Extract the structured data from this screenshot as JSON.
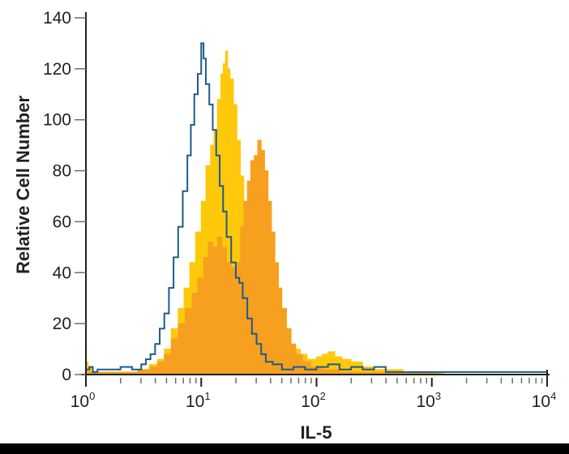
{
  "colors": {
    "isotype_outline": "#1f5a8a",
    "yellow_fill": "#ffc90b",
    "orange_fill": "#f7a01f",
    "axis": "#231f20",
    "tick": "#6d6e71",
    "baseline": "#4a3b2a",
    "background": "#ffffff"
  },
  "chart_data": {
    "type": "area",
    "title": "",
    "xlabel": "IL-5",
    "ylabel": "Relative Cell Number",
    "xscale": "log",
    "xlim_log10": [
      0,
      4
    ],
    "ylim": [
      0,
      140
    ],
    "grid": false,
    "legend": null,
    "x_tick_labels": [
      {
        "base": "10",
        "exp": "0",
        "log10": 0
      },
      {
        "base": "10",
        "exp": "1",
        "log10": 1
      },
      {
        "base": "10",
        "exp": "2",
        "log10": 2
      },
      {
        "base": "10",
        "exp": "3",
        "log10": 3
      },
      {
        "base": "10",
        "exp": "4",
        "log10": 4
      }
    ],
    "y_ticks": [
      0,
      20,
      40,
      60,
      80,
      100,
      120,
      140
    ],
    "series": [
      {
        "name": "Yellow filled histogram",
        "style": "fill",
        "color_key": "yellow_fill",
        "points_log10x_y": [
          [
            0.0,
            5
          ],
          [
            0.02,
            3
          ],
          [
            0.05,
            1
          ],
          [
            0.3,
            1
          ],
          [
            0.45,
            2
          ],
          [
            0.55,
            4
          ],
          [
            0.62,
            6
          ],
          [
            0.68,
            10
          ],
          [
            0.74,
            18
          ],
          [
            0.8,
            26
          ],
          [
            0.85,
            34
          ],
          [
            0.9,
            44
          ],
          [
            0.95,
            56
          ],
          [
            1.0,
            68
          ],
          [
            1.04,
            82
          ],
          [
            1.08,
            90
          ],
          [
            1.11,
            96
          ],
          [
            1.14,
            108
          ],
          [
            1.17,
            118
          ],
          [
            1.19,
            122
          ],
          [
            1.21,
            127
          ],
          [
            1.23,
            120
          ],
          [
            1.25,
            116
          ],
          [
            1.28,
            106
          ],
          [
            1.31,
            92
          ],
          [
            1.34,
            78
          ],
          [
            1.37,
            68
          ],
          [
            1.4,
            62
          ],
          [
            1.44,
            58
          ],
          [
            1.48,
            54
          ],
          [
            1.52,
            48
          ],
          [
            1.56,
            40
          ],
          [
            1.6,
            32
          ],
          [
            1.64,
            24
          ],
          [
            1.68,
            18
          ],
          [
            1.72,
            14
          ],
          [
            1.76,
            12
          ],
          [
            1.8,
            10
          ],
          [
            1.86,
            8
          ],
          [
            1.92,
            6
          ],
          [
            2.0,
            7
          ],
          [
            2.05,
            8
          ],
          [
            2.1,
            9
          ],
          [
            2.16,
            7
          ],
          [
            2.22,
            6
          ],
          [
            2.3,
            5
          ],
          [
            2.4,
            3
          ],
          [
            2.5,
            2
          ],
          [
            2.6,
            2
          ],
          [
            2.75,
            1
          ],
          [
            2.9,
            1
          ],
          [
            3.05,
            1
          ],
          [
            3.1,
            0
          ]
        ]
      },
      {
        "name": "Orange filled histogram",
        "style": "fill",
        "color_key": "orange_fill",
        "points_log10x_y": [
          [
            0.0,
            1
          ],
          [
            0.1,
            1
          ],
          [
            0.3,
            1
          ],
          [
            0.45,
            2
          ],
          [
            0.55,
            3
          ],
          [
            0.62,
            5
          ],
          [
            0.68,
            8
          ],
          [
            0.74,
            14
          ],
          [
            0.8,
            20
          ],
          [
            0.86,
            26
          ],
          [
            0.92,
            32
          ],
          [
            0.97,
            38
          ],
          [
            1.02,
            46
          ],
          [
            1.06,
            52
          ],
          [
            1.1,
            50
          ],
          [
            1.14,
            54
          ],
          [
            1.18,
            50
          ],
          [
            1.22,
            44
          ],
          [
            1.26,
            42
          ],
          [
            1.3,
            44
          ],
          [
            1.34,
            58
          ],
          [
            1.37,
            68
          ],
          [
            1.4,
            76
          ],
          [
            1.43,
            84
          ],
          [
            1.46,
            86
          ],
          [
            1.49,
            92
          ],
          [
            1.52,
            88
          ],
          [
            1.55,
            80
          ],
          [
            1.58,
            68
          ],
          [
            1.61,
            56
          ],
          [
            1.64,
            44
          ],
          [
            1.67,
            34
          ],
          [
            1.7,
            26
          ],
          [
            1.74,
            18
          ],
          [
            1.78,
            12
          ],
          [
            1.82,
            8
          ],
          [
            1.88,
            5
          ],
          [
            1.95,
            3
          ],
          [
            2.05,
            2
          ],
          [
            2.2,
            1
          ],
          [
            2.5,
            1
          ],
          [
            2.8,
            1
          ],
          [
            3.0,
            1
          ],
          [
            3.05,
            0
          ]
        ]
      },
      {
        "name": "Isotype control (blue outline)",
        "style": "outline",
        "color_key": "isotype_outline",
        "points_log10x_y": [
          [
            0.0,
            2
          ],
          [
            0.03,
            3
          ],
          [
            0.06,
            1
          ],
          [
            0.1,
            2
          ],
          [
            0.2,
            2
          ],
          [
            0.3,
            3
          ],
          [
            0.4,
            2
          ],
          [
            0.48,
            4
          ],
          [
            0.52,
            6
          ],
          [
            0.56,
            8
          ],
          [
            0.6,
            12
          ],
          [
            0.64,
            18
          ],
          [
            0.68,
            24
          ],
          [
            0.72,
            34
          ],
          [
            0.76,
            46
          ],
          [
            0.8,
            58
          ],
          [
            0.84,
            72
          ],
          [
            0.88,
            86
          ],
          [
            0.91,
            98
          ],
          [
            0.94,
            110
          ],
          [
            0.97,
            118
          ],
          [
            1.0,
            130
          ],
          [
            1.02,
            124
          ],
          [
            1.04,
            114
          ],
          [
            1.07,
            106
          ],
          [
            1.1,
            96
          ],
          [
            1.13,
            86
          ],
          [
            1.16,
            74
          ],
          [
            1.19,
            64
          ],
          [
            1.22,
            54
          ],
          [
            1.26,
            44
          ],
          [
            1.3,
            38
          ],
          [
            1.33,
            36
          ],
          [
            1.36,
            30
          ],
          [
            1.4,
            22
          ],
          [
            1.44,
            16
          ],
          [
            1.48,
            12
          ],
          [
            1.52,
            8
          ],
          [
            1.56,
            5
          ],
          [
            1.62,
            4
          ],
          [
            1.7,
            2
          ],
          [
            1.8,
            3
          ],
          [
            1.9,
            2
          ],
          [
            2.0,
            3
          ],
          [
            2.1,
            4
          ],
          [
            2.2,
            2
          ],
          [
            2.3,
            3
          ],
          [
            2.4,
            2
          ],
          [
            2.5,
            3
          ],
          [
            2.6,
            1
          ],
          [
            2.8,
            1
          ],
          [
            3.0,
            1
          ],
          [
            3.5,
            1
          ],
          [
            4.0,
            1
          ]
        ]
      }
    ]
  }
}
